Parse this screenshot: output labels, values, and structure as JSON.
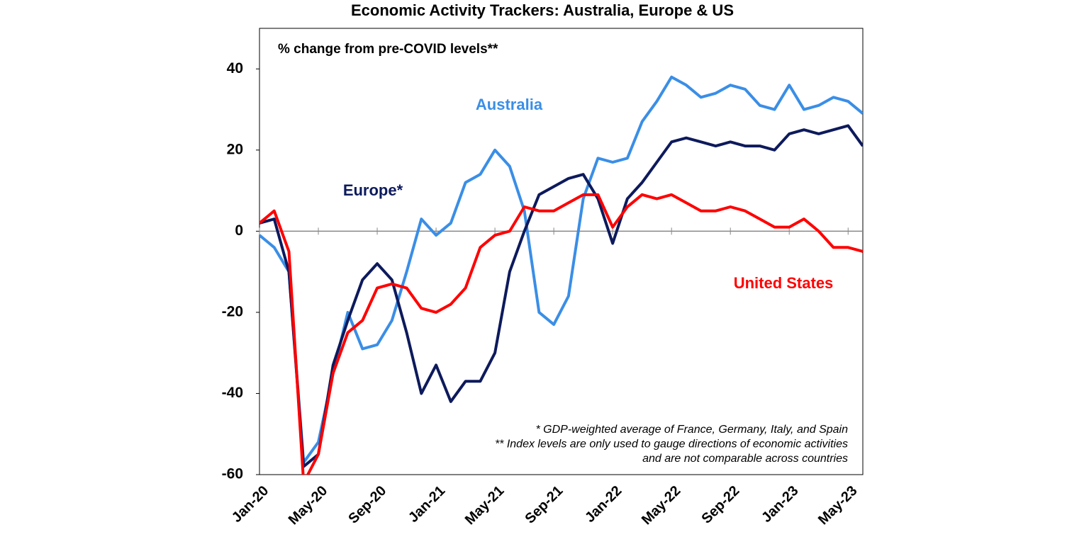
{
  "chart_data": {
    "type": "line",
    "title": "Economic Activity Trackers: Australia, Europe & US",
    "annotation": "% change from pre-COVID levels**",
    "notes": [
      "* GDP-weighted average of France, Germany, Italy, and Spain",
      "** Index levels are only used to gauge  directions of economic activities",
      "and are not comparable across countries"
    ],
    "categories": [
      "Jan-20",
      null,
      null,
      null,
      "May-20",
      null,
      null,
      null,
      "Sep-20",
      null,
      null,
      null,
      "Jan-21",
      null,
      null,
      null,
      "May-21",
      null,
      null,
      null,
      "Sep-21",
      null,
      null,
      null,
      "Jan-22",
      null,
      null,
      null,
      "May-22",
      null,
      null,
      null,
      "Sep-22",
      null,
      null,
      null,
      "Jan-23",
      null,
      null,
      null,
      "May-23",
      null
    ],
    "series": [
      {
        "name": "Australia",
        "color": "#3a8ee6",
        "values": [
          -1,
          -4,
          -10,
          -57,
          -52,
          -35,
          -20,
          -29,
          -28,
          -22,
          -10,
          3,
          -1,
          2,
          12,
          14,
          20,
          16,
          5,
          -20,
          -23,
          -16,
          8,
          18,
          17,
          18,
          27,
          32,
          38,
          36,
          33,
          34,
          36,
          35,
          31,
          30,
          36,
          30,
          31,
          33,
          32,
          29
        ]
      },
      {
        "name": "Europe*",
        "color": "#0d1a5c",
        "values": [
          2,
          3,
          -10,
          -58,
          -55,
          -33,
          -22,
          -12,
          -8,
          -12,
          -25,
          -40,
          -33,
          -42,
          -37,
          -37,
          -30,
          -10,
          0,
          9,
          11,
          13,
          14,
          8,
          -3,
          8,
          12,
          17,
          22,
          23,
          22,
          21,
          22,
          21,
          21,
          20,
          24,
          25,
          24,
          25,
          26,
          21
        ]
      },
      {
        "name": "United States",
        "color": "#ff0000",
        "values": [
          2,
          5,
          -5,
          -62,
          -55,
          -35,
          -25,
          -22,
          -14,
          -13,
          -14,
          -19,
          -20,
          -18,
          -14,
          -4,
          -1,
          0,
          6,
          5,
          5,
          7,
          9,
          9,
          1,
          6,
          9,
          8,
          9,
          7,
          5,
          5,
          6,
          5,
          3,
          1,
          1,
          3,
          0,
          -4,
          -4,
          -5
        ]
      }
    ],
    "ylim": [
      -60,
      50
    ],
    "yticks": [
      -60,
      -40,
      -20,
      0,
      20,
      40
    ]
  }
}
